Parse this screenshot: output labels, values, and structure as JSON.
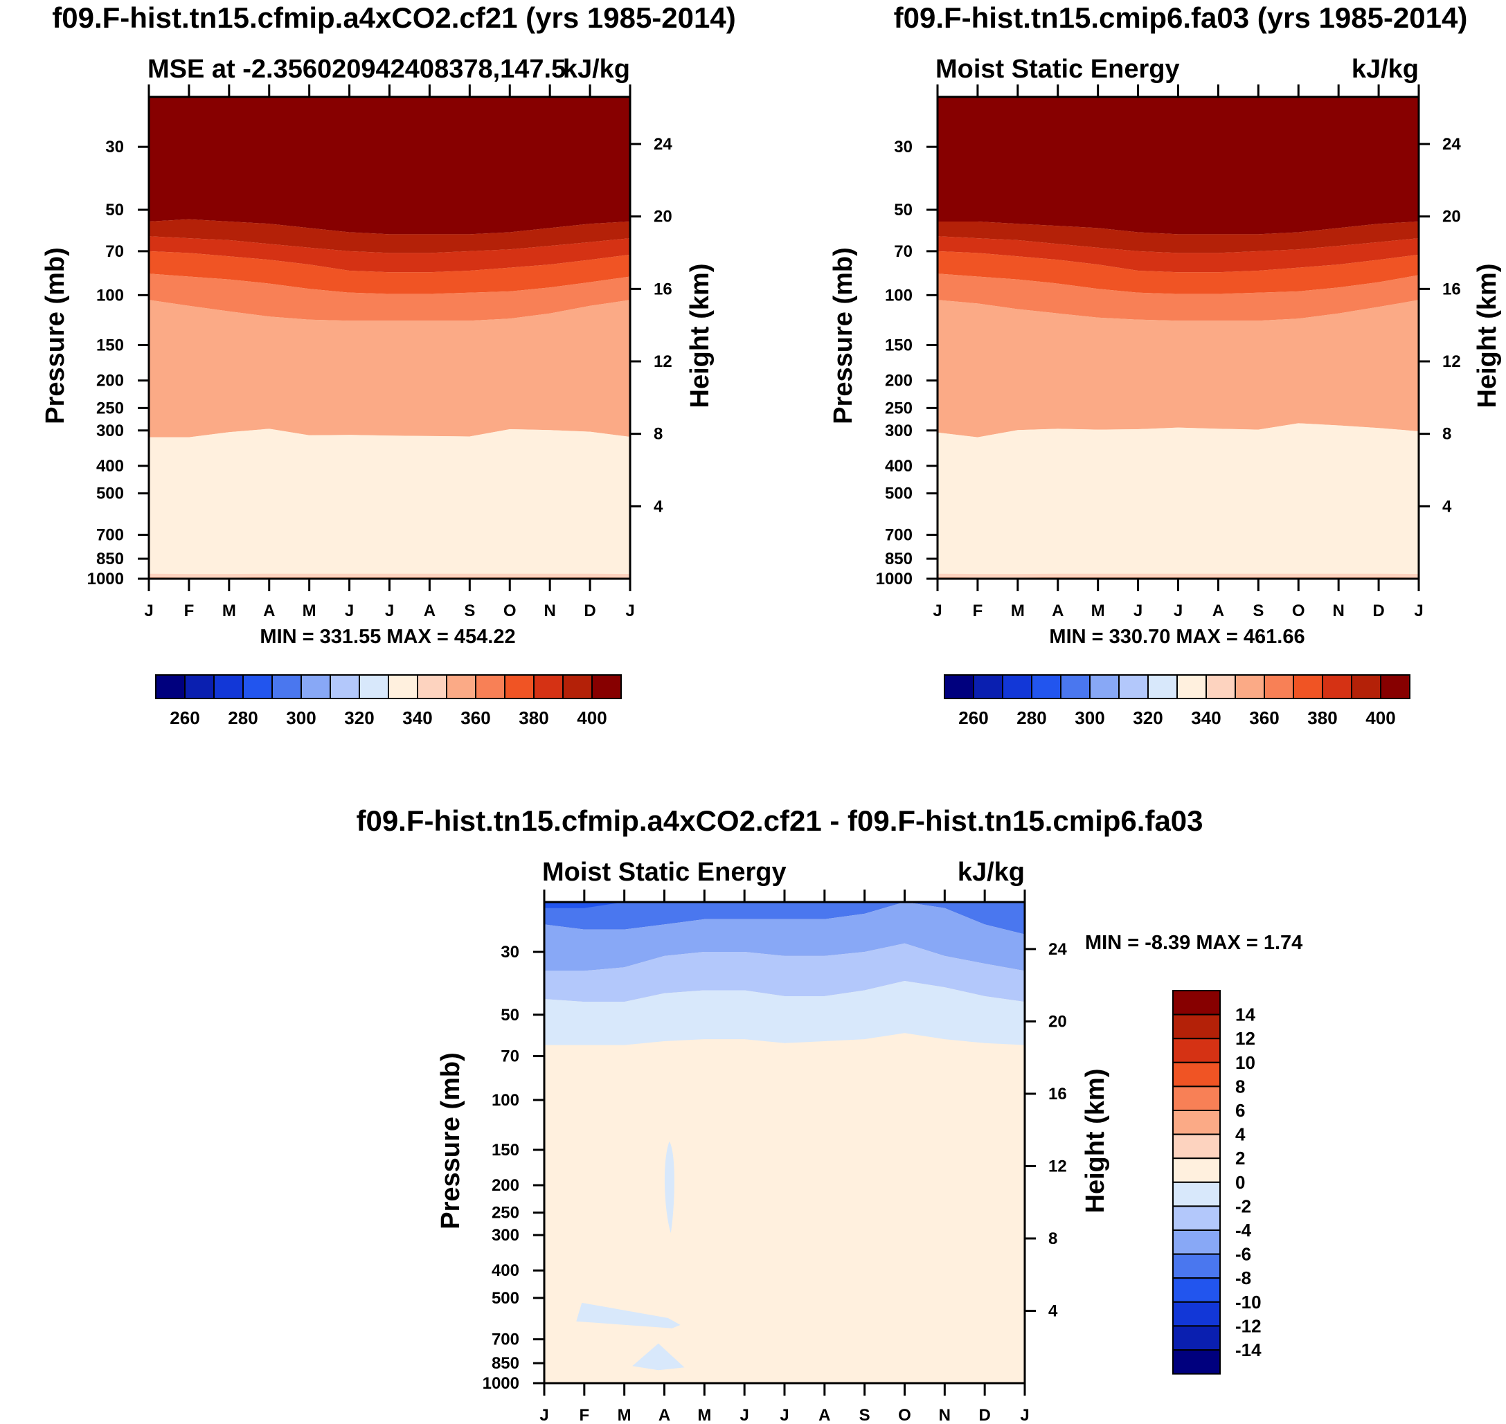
{
  "figure": {
    "panel_a": {
      "title": "f09.F-hist.tn15.cfmip.a4xCO2.cf21 (yrs 1985-2014)",
      "subtitle_left": "MSE at -2.35602094240837​8,147.5",
      "subtitle_right": "kJ/kg",
      "stats": "MIN = 331.55 MAX = 454.22"
    },
    "panel_b": {
      "title": "f09.F-hist.tn15.cmip6.fa03 (yrs 1985-2014)",
      "subtitle_left": "Moist Static Energy",
      "subtitle_right": "kJ/kg",
      "stats": "MIN = 330.70 MAX = 461.66"
    },
    "panel_c": {
      "title": "f09.F-hist.tn15.cfmip.a4xCO2.cf21 - f09.F-hist.tn15.cmip6.fa03",
      "subtitle_left": "Moist Static Energy",
      "subtitle_right": "kJ/kg",
      "stats": "MIN =  -8.39 MAX =   1.74"
    },
    "ylabel_left": "Pressure (mb)",
    "ylabel_right": "Height (km)"
  },
  "chart_data": [
    {
      "type": "heatmap",
      "subtype": "filled-contour",
      "title": "f09.F-hist.tn15.cfmip.a4xCO2.cf21 (yrs 1985-2014)",
      "variable": "MSE at -2.35602094240837​8,147.5",
      "units": "kJ/kg",
      "x": [
        "J",
        "F",
        "M",
        "A",
        "M",
        "J",
        "J",
        "A",
        "S",
        "O",
        "N",
        "D",
        "J"
      ],
      "ylabel": "Pressure (mb)",
      "yticks": [
        30,
        50,
        70,
        100,
        150,
        200,
        250,
        300,
        400,
        500,
        700,
        850,
        1000
      ],
      "ylim": [
        20,
        1000
      ],
      "y2label": "Height (km)",
      "y2ticks": [
        4,
        8,
        12,
        16,
        20,
        24
      ],
      "contour_boundaries_p": {
        "b330": [
          988,
          990,
          990,
          988,
          987,
          987,
          987,
          987,
          987,
          987,
          987,
          988,
          990
        ],
        "b340": [
          317,
          317,
          304,
          296,
          312,
          311,
          313,
          314,
          315,
          297,
          299,
          303,
          316
        ],
        "b350": [
          104,
          109,
          114,
          119,
          122,
          123,
          123,
          123,
          123,
          121,
          116,
          109,
          104
        ],
        "b360": [
          84,
          86,
          88,
          91,
          95,
          98,
          99,
          99,
          98,
          97,
          94,
          90,
          86
        ],
        "b370": [
          70,
          71,
          73,
          75,
          78,
          82,
          83,
          83,
          82,
          80,
          78,
          75,
          72
        ],
        "b380": [
          62,
          63,
          64,
          66,
          68,
          70,
          71,
          71,
          70,
          69,
          67,
          65,
          63
        ],
        "b390": [
          55,
          54,
          55,
          56,
          58,
          60,
          61,
          61,
          61,
          60,
          58,
          56,
          55
        ]
      },
      "min": 331.55,
      "max": 454.22
    },
    {
      "type": "heatmap",
      "subtype": "filled-contour",
      "title": "f09.F-hist.tn15.cmip6.fa03 (yrs 1985-2014)",
      "variable": "Moist Static Energy",
      "units": "kJ/kg",
      "x": [
        "J",
        "F",
        "M",
        "A",
        "M",
        "J",
        "J",
        "A",
        "S",
        "O",
        "N",
        "D",
        "J"
      ],
      "ylabel": "Pressure (mb)",
      "yticks": [
        30,
        50,
        70,
        100,
        150,
        200,
        250,
        300,
        400,
        500,
        700,
        850,
        1000
      ],
      "ylim": [
        20,
        1000
      ],
      "y2label": "Height (km)",
      "y2ticks": [
        4,
        8,
        12,
        16,
        20,
        24
      ],
      "contour_boundaries_p": {
        "b330": [
          988,
          990,
          990,
          988,
          987,
          987,
          987,
          987,
          987,
          987,
          987,
          988,
          990
        ],
        "b340": [
          305,
          317,
          299,
          296,
          298,
          297,
          293,
          296,
          298,
          283,
          288,
          294,
          302
        ],
        "b350": [
          104,
          107,
          112,
          116,
          120,
          122,
          123,
          123,
          123,
          121,
          116,
          110,
          104
        ],
        "b360": [
          84,
          86,
          88,
          91,
          95,
          98,
          99,
          99,
          98,
          97,
          94,
          90,
          85
        ],
        "b370": [
          70,
          71,
          73,
          75,
          78,
          82,
          83,
          83,
          82,
          80,
          78,
          75,
          72
        ],
        "b380": [
          62,
          63,
          64,
          66,
          68,
          70,
          71,
          71,
          70,
          69,
          67,
          65,
          63
        ],
        "b390": [
          55,
          55,
          56,
          57,
          58,
          60,
          61,
          61,
          61,
          60,
          58,
          56,
          55
        ]
      },
      "min": 330.7,
      "max": 461.66
    },
    {
      "type": "heatmap",
      "subtype": "filled-contour",
      "title": "f09.F-hist.tn15.cfmip.a4xCO2.cf21 - f09.F-hist.tn15.cmip6.fa03",
      "variable": "Moist Static Energy",
      "units": "kJ/kg",
      "x": [
        "J",
        "F",
        "M",
        "A",
        "M",
        "J",
        "J",
        "A",
        "S",
        "O",
        "N",
        "D",
        "J"
      ],
      "ylabel": "Pressure (mb)",
      "yticks": [
        30,
        50,
        70,
        100,
        150,
        200,
        250,
        300,
        400,
        500,
        700,
        850,
        1000
      ],
      "ylim": [
        20,
        1000
      ],
      "y2label": "Height (km)",
      "y2ticks": [
        4,
        8,
        12,
        16,
        20,
        24
      ],
      "contour_boundaries_p": {
        "b_m10": [
          21,
          21,
          20,
          20,
          20,
          20,
          20,
          20,
          20,
          20,
          20,
          20,
          20
        ],
        "b_m8": [
          24,
          25,
          25,
          24,
          23,
          23,
          23,
          23,
          22,
          20,
          21,
          24,
          26
        ],
        "b_m6": [
          35,
          35,
          34,
          31,
          30,
          30,
          31,
          31,
          30,
          28,
          31,
          33,
          35
        ],
        "b_m4": [
          44,
          45,
          45,
          42,
          41,
          41,
          43,
          43,
          41,
          38,
          40,
          43,
          45
        ],
        "b_m2": [
          64,
          64,
          64,
          62,
          61,
          61,
          63,
          62,
          61,
          58,
          61,
          63,
          64
        ]
      },
      "blobs": [
        {
          "value": "0 to -2",
          "months": [
            3.0,
            3.25
          ],
          "p": [
            140,
            295
          ]
        },
        {
          "value": "0 to -2",
          "months": [
            0.8,
            3.4
          ],
          "p": [
            520,
            640
          ]
        },
        {
          "value": "0 to -2",
          "months": [
            2.2,
            3.5
          ],
          "p": [
            700,
            900
          ]
        }
      ],
      "min": -8.39,
      "max": 1.74
    }
  ],
  "colorbar_abs": {
    "colors": [
      "#00007e",
      "#0a1fb0",
      "#1237d7",
      "#2255ee",
      "#4a77ef",
      "#88a8f6",
      "#b3c8fb",
      "#d8e8fb",
      "#fff0de",
      "#fdd3bf",
      "#fbaa86",
      "#f88056",
      "#f05424",
      "#d53214",
      "#b42108",
      "#870000"
    ],
    "labels": [
      "260",
      "280",
      "300",
      "320",
      "340",
      "360",
      "380",
      "400"
    ]
  },
  "colorbar_diff": {
    "colors": [
      "#00007e",
      "#0a1fb0",
      "#1237d7",
      "#2255ee",
      "#4a77ef",
      "#88a8f6",
      "#b3c8fb",
      "#d8e8fb",
      "#fff0de",
      "#fdd3bf",
      "#fbaa86",
      "#f88056",
      "#f05424",
      "#d53214",
      "#b42108",
      "#870000"
    ],
    "labels": [
      "14",
      "12",
      "10",
      "8",
      "6",
      "4",
      "2",
      "0",
      "-2",
      "-4",
      "-6",
      "-8",
      "-10",
      "-12",
      "-14"
    ]
  }
}
